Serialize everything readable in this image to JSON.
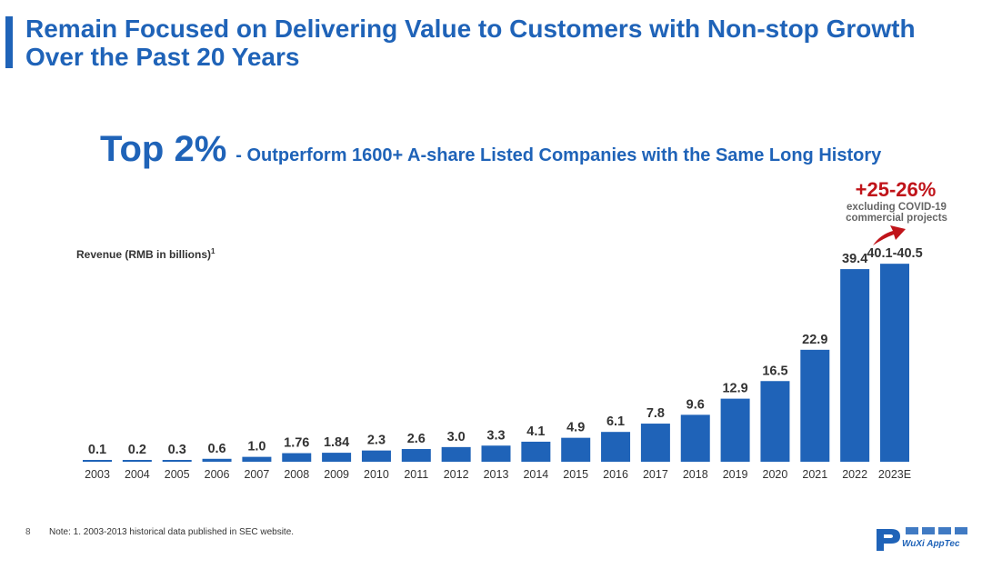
{
  "slide": {
    "title": "Remain Focused on Delivering Value to Customers with Non-stop Growth Over the Past 20 Years",
    "headline_big": "Top 2%",
    "headline_small": "- Outperform 1600+ A-share Listed Companies with the Same Long History",
    "page_number": "8",
    "footnote": "Note: 1. 2003-2013 historical data published in SEC website.",
    "logo_text": "WuXi AppTec",
    "logo_icon": "wuxi-apptec-logo-icon"
  },
  "colors": {
    "brand": "#1f63b8",
    "highlight": "#c0141a",
    "text": "#333333"
  },
  "chart_data": {
    "type": "bar",
    "ylabel": "Revenue (RMB in billions)",
    "ylabel_superscript": "1",
    "categories": [
      "2003",
      "2004",
      "2005",
      "2006",
      "2007",
      "2008",
      "2009",
      "2010",
      "2011",
      "2012",
      "2013",
      "2014",
      "2015",
      "2016",
      "2017",
      "2018",
      "2019",
      "2020",
      "2021",
      "2022",
      "2023E"
    ],
    "values": [
      0.1,
      0.2,
      0.3,
      0.6,
      1.0,
      1.76,
      1.84,
      2.3,
      2.6,
      3.0,
      3.3,
      4.1,
      4.9,
      6.1,
      7.8,
      9.6,
      12.9,
      16.5,
      22.9,
      39.4,
      40.5
    ],
    "value_labels": [
      "0.1",
      "0.2",
      "0.3",
      "0.6",
      "1.0",
      "1.76",
      "1.84",
      "2.3",
      "2.6",
      "3.0",
      "3.3",
      "4.1",
      "4.9",
      "6.1",
      "7.8",
      "9.6",
      "12.9",
      "16.5",
      "22.9",
      "39.4",
      "40.1-40.5"
    ],
    "ylim": [
      0,
      42
    ],
    "grid": false,
    "legend": "none",
    "annotation": {
      "target_category": "2023E",
      "text": "+25-26%",
      "subtext": "excluding COVID-19 commercial projects"
    }
  }
}
